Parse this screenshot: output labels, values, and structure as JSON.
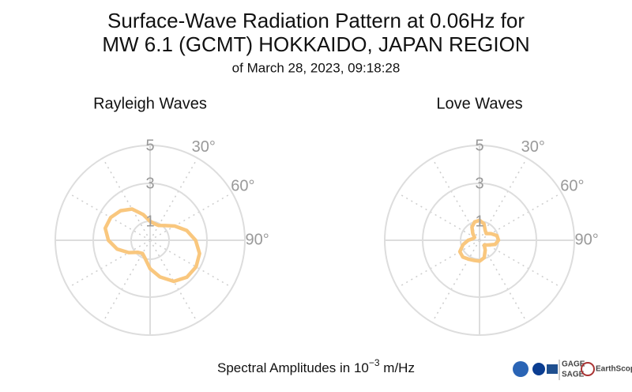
{
  "header": {
    "title": [
      "Surface-Wave Radiation Pattern at 0.06Hz for",
      "MW 6.1 (GCMT) HOKKAIDO, JAPAN REGION"
    ],
    "subtitle": "of March 28, 2023, 09:18:28"
  },
  "footer": {
    "text": "Spectral Amplitudes in",
    "base": "10",
    "exponent": "−3",
    "unit": "m/Hz",
    "logos": [
      "GAGE",
      "SAGE",
      "EarthScope"
    ]
  },
  "chart_data": [
    {
      "type": "polar",
      "title": "Rayleigh Waves",
      "color": "#f9c77e",
      "theta": [
        0,
        15,
        30,
        45,
        60,
        75,
        90,
        105,
        120,
        135,
        150,
        165,
        180,
        195,
        210,
        225,
        240,
        255,
        270,
        285,
        300,
        315,
        330,
        345
      ],
      "r": [
        1.0,
        0.9,
        0.9,
        1.1,
        1.5,
        2.0,
        2.4,
        2.7,
        2.8,
        2.75,
        2.5,
        2.0,
        1.5,
        1.0,
        0.8,
        0.9,
        1.3,
        1.8,
        2.2,
        2.45,
        2.4,
        2.2,
        1.9,
        1.4
      ],
      "rlim": [
        0,
        5
      ],
      "rticks": [
        1,
        3,
        5
      ],
      "thetaticks": [
        {
          "value": 30,
          "label": "30°"
        },
        {
          "value": 60,
          "label": "60°"
        },
        {
          "value": 90,
          "label": "90°"
        }
      ]
    },
    {
      "type": "polar",
      "title": "Love Waves",
      "color": "#f9c77e",
      "theta": [
        0,
        15,
        30,
        45,
        60,
        75,
        90,
        105,
        120,
        135,
        150,
        165,
        180,
        195,
        210,
        225,
        240,
        255,
        270,
        285,
        300,
        315,
        330,
        345
      ],
      "r": [
        1.05,
        0.9,
        0.6,
        0.5,
        0.7,
        0.95,
        1.0,
        0.85,
        0.5,
        0.35,
        0.6,
        0.95,
        1.1,
        1.1,
        1.15,
        1.25,
        1.2,
        0.9,
        0.6,
        0.35,
        0.3,
        0.5,
        0.8,
        1.0
      ],
      "rlim": [
        0,
        5
      ],
      "rticks": [
        1,
        3,
        5
      ],
      "thetaticks": [
        {
          "value": 30,
          "label": "30°"
        },
        {
          "value": 60,
          "label": "60°"
        },
        {
          "value": 90,
          "label": "90°"
        }
      ]
    }
  ]
}
